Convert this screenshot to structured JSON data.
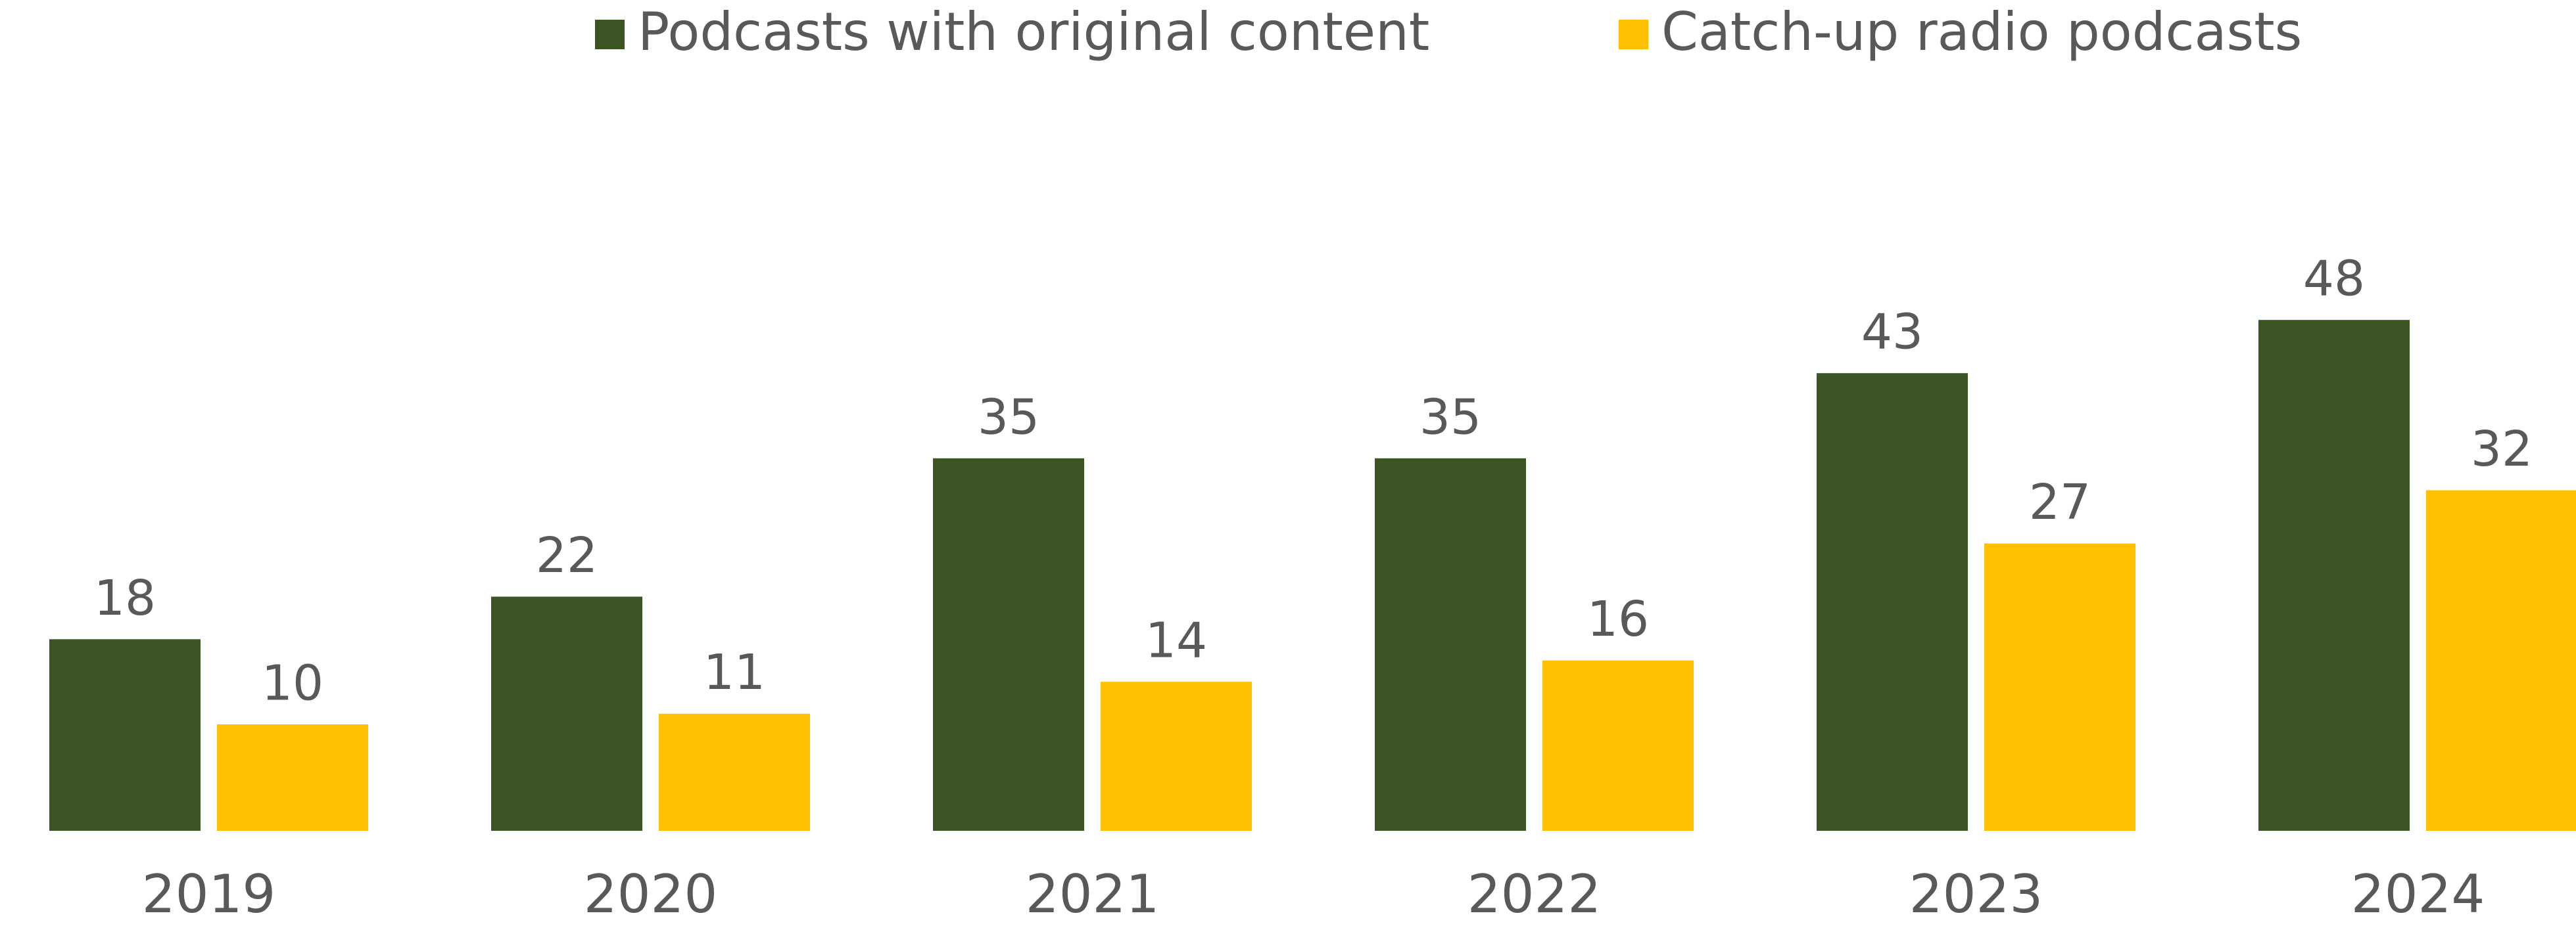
{
  "chart_data": {
    "type": "bar",
    "categories": [
      "2019",
      "2020",
      "2021",
      "2022",
      "2023",
      "2024"
    ],
    "series": [
      {
        "name": "Podcasts with original content",
        "color": "#3b5524",
        "values": [
          18,
          22,
          35,
          35,
          43,
          48
        ]
      },
      {
        "name": "Catch-up radio podcasts",
        "color": "#ffc000",
        "values": [
          10,
          11,
          14,
          16,
          27,
          32
        ]
      }
    ],
    "ylim": [
      0,
      78
    ],
    "legend": "top"
  }
}
